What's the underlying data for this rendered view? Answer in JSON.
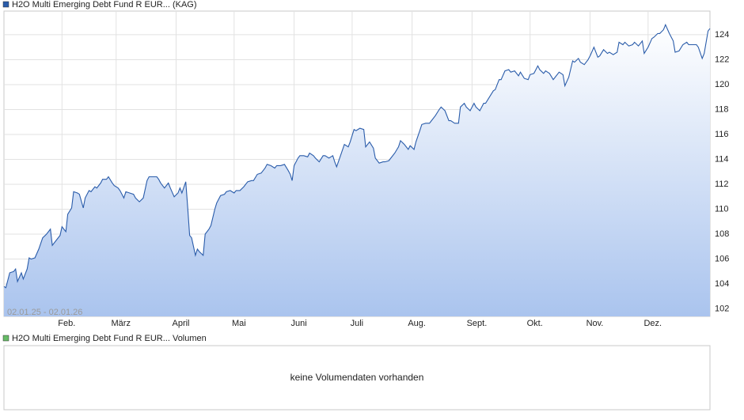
{
  "chart_data": [
    {
      "type": "area",
      "title": "H2O Multi Emerging Debt Fund R EUR... (KAG)",
      "date_range": "02.01.25 - 02.01.26",
      "xlim": [
        0,
        365
      ],
      "ylim": [
        101.4,
        125.9
      ],
      "xticks": [
        {
          "value": 30,
          "label": "Feb."
        },
        {
          "value": 58,
          "label": "März"
        },
        {
          "value": 89,
          "label": "April"
        },
        {
          "value": 119,
          "label": "Mai"
        },
        {
          "value": 150,
          "label": "Juni"
        },
        {
          "value": 180,
          "label": "Juli"
        },
        {
          "value": 211,
          "label": "Aug."
        },
        {
          "value": 242,
          "label": "Sept."
        },
        {
          "value": 272,
          "label": "Okt."
        },
        {
          "value": 303,
          "label": "Nov."
        },
        {
          "value": 333,
          "label": "Dez."
        }
      ],
      "yticks": [
        102,
        104,
        106,
        108,
        110,
        112,
        114,
        116,
        118,
        120,
        122,
        124
      ],
      "grid": true,
      "x": [
        0,
        1,
        3,
        5,
        6,
        7,
        9,
        10,
        12,
        13,
        14,
        16,
        18,
        20,
        22,
        24,
        25,
        27,
        29,
        30,
        32,
        33,
        35,
        36,
        38,
        39,
        41,
        42,
        44,
        45,
        47,
        48,
        50,
        51,
        53,
        54,
        56,
        57,
        59,
        60,
        62,
        63,
        65,
        67,
        68,
        70,
        72,
        74,
        75,
        77,
        79,
        80,
        81,
        83,
        85,
        86,
        88,
        90,
        91,
        92,
        94,
        95,
        96,
        97,
        99,
        100,
        101,
        103,
        104,
        106,
        107,
        109,
        110,
        112,
        114,
        115,
        117,
        119,
        120,
        122,
        124,
        126,
        128,
        129,
        131,
        133,
        135,
        136,
        138,
        140,
        141,
        143,
        145,
        147,
        148,
        149,
        150,
        152,
        153,
        155,
        157,
        158,
        160,
        161,
        163,
        165,
        166,
        168,
        170,
        171,
        172,
        174,
        176,
        178,
        179,
        181,
        182,
        184,
        186,
        187,
        189,
        191,
        192,
        194,
        196,
        197,
        199,
        200,
        202,
        204,
        205,
        207,
        209,
        210,
        212,
        213,
        215,
        216,
        218,
        220,
        221,
        223,
        225,
        226,
        228,
        230,
        231,
        233,
        235,
        236,
        238,
        239,
        241,
        243,
        244,
        246,
        248,
        249,
        251,
        253,
        254,
        256,
        257,
        259,
        261,
        262,
        264,
        266,
        267,
        269,
        271,
        272,
        274,
        276,
        277,
        279,
        280,
        282,
        284,
        285,
        287,
        289,
        290,
        292,
        294,
        295,
        297,
        298,
        300,
        302,
        303,
        305,
        307,
        308,
        310,
        312,
        313,
        315,
        317,
        318,
        320,
        321,
        323,
        325,
        326,
        328,
        330,
        331,
        333,
        335,
        336,
        338,
        339,
        341,
        342,
        344,
        346,
        347,
        349,
        351,
        353,
        354,
        356,
        358,
        359,
        361,
        362,
        364,
        365
      ],
      "series": [
        {
          "name": "H2O Multi Emerging Debt Fund R EUR... (KAG)",
          "color": "#2a5caa",
          "values": [
            103.8,
            103.7,
            104.9,
            105.0,
            105.2,
            104.2,
            104.9,
            104.4,
            105.2,
            106.1,
            106.0,
            106.1,
            106.8,
            107.7,
            108.0,
            108.4,
            107.1,
            107.5,
            107.9,
            108.6,
            108.2,
            109.6,
            110.1,
            111.4,
            111.3,
            111.2,
            110.1,
            110.9,
            111.5,
            111.4,
            111.8,
            111.7,
            112.1,
            112.4,
            112.4,
            112.6,
            112.1,
            111.9,
            111.7,
            111.5,
            110.9,
            111.4,
            111.3,
            111.2,
            110.9,
            110.6,
            110.9,
            112.3,
            112.6,
            112.6,
            112.6,
            112.4,
            112.1,
            111.7,
            112.1,
            111.7,
            111.0,
            111.3,
            111.7,
            111.3,
            112.2,
            110.1,
            107.9,
            107.7,
            106.3,
            106.8,
            106.6,
            106.3,
            108.0,
            108.4,
            108.7,
            110.0,
            110.5,
            111.1,
            111.2,
            111.4,
            111.5,
            111.3,
            111.5,
            111.5,
            111.8,
            112.2,
            112.3,
            112.3,
            112.8,
            112.9,
            113.3,
            113.6,
            113.5,
            113.3,
            113.5,
            113.5,
            113.6,
            113.1,
            112.8,
            112.3,
            113.5,
            114.1,
            114.3,
            114.3,
            114.2,
            114.5,
            114.3,
            114.1,
            113.8,
            114.3,
            114.3,
            114.1,
            114.3,
            113.8,
            113.4,
            114.3,
            115.2,
            115.0,
            115.4,
            116.4,
            116.3,
            116.5,
            116.4,
            115.0,
            115.4,
            114.9,
            114.1,
            113.7,
            113.8,
            113.8,
            113.9,
            114.1,
            114.5,
            115.0,
            115.5,
            115.2,
            114.8,
            115.1,
            114.8,
            115.4,
            116.3,
            116.8,
            116.9,
            116.9,
            117.1,
            117.5,
            118.0,
            118.2,
            117.9,
            117.1,
            117.1,
            116.9,
            116.9,
            118.2,
            118.5,
            118.2,
            117.9,
            118.5,
            118.2,
            117.9,
            118.5,
            118.5,
            119.0,
            119.5,
            119.6,
            120.4,
            120.4,
            121.1,
            121.2,
            121.0,
            121.1,
            120.7,
            121.0,
            120.5,
            120.4,
            120.8,
            120.9,
            121.5,
            121.2,
            120.9,
            121.1,
            120.9,
            120.4,
            120.6,
            121.0,
            120.8,
            119.9,
            120.6,
            121.9,
            121.8,
            122.1,
            121.8,
            121.6,
            122.0,
            122.3,
            123.0,
            122.2,
            122.3,
            122.8,
            122.5,
            122.6,
            122.4,
            122.6,
            123.4,
            123.2,
            123.4,
            123.1,
            123.2,
            123.4,
            123.1,
            123.5,
            122.5,
            123.0,
            123.7,
            123.8,
            124.1,
            124.1,
            124.4,
            124.8,
            124.1,
            123.5,
            122.6,
            122.7,
            123.2,
            123.4,
            123.2,
            123.2,
            123.2,
            123.0,
            122.1,
            122.5,
            124.3,
            124.5
          ]
        }
      ]
    },
    {
      "type": "empty",
      "title": "H2O Multi Emerging Debt Fund R EUR... Volumen",
      "color": "#66bb66",
      "message": "keine Volumendaten vorhanden"
    }
  ]
}
